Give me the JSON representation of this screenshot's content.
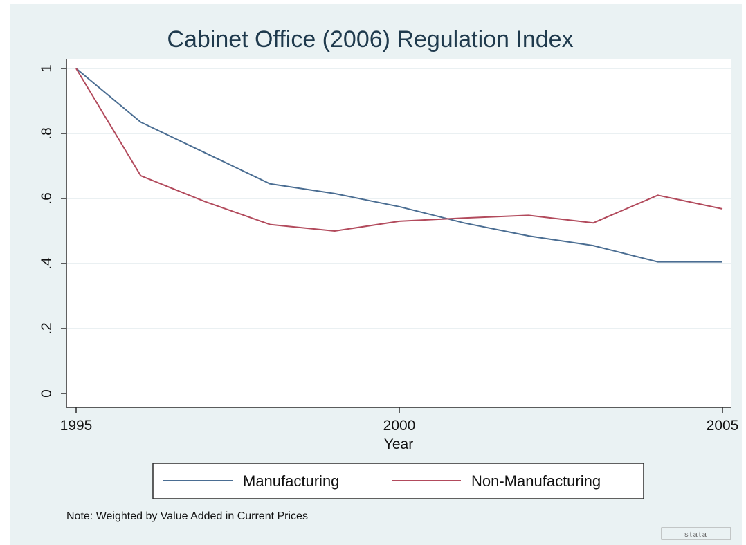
{
  "chart_data": {
    "type": "line",
    "title": "Cabinet Office (2006) Regulation Index",
    "xlabel": "Year",
    "ylabel": "",
    "xlim": [
      1995,
      2005
    ],
    "ylim": [
      0,
      1
    ],
    "x_ticks": [
      1995,
      2000,
      2005
    ],
    "x_tick_labels": [
      "1995",
      "2000",
      "2005"
    ],
    "y_ticks": [
      0,
      0.2,
      0.4,
      0.6,
      0.8,
      1
    ],
    "y_tick_labels": [
      "0",
      ".2",
      ".4",
      ".6",
      ".8",
      "1"
    ],
    "grid": true,
    "legend_position": "bottom",
    "series": [
      {
        "name": "Manufacturing",
        "color": "#4a6d92",
        "x": [
          1995,
          1996,
          1997,
          1998,
          1999,
          2000,
          2001,
          2002,
          2003,
          2004,
          2005
        ],
        "values": [
          1.0,
          0.835,
          0.74,
          0.645,
          0.615,
          0.575,
          0.525,
          0.485,
          0.455,
          0.405,
          0.405
        ]
      },
      {
        "name": "Non-Manufacturing",
        "color": "#b24a5c",
        "x": [
          1995,
          1996,
          1997,
          1998,
          1999,
          2000,
          2001,
          2002,
          2003,
          2004,
          2005
        ],
        "values": [
          1.0,
          0.67,
          0.59,
          0.52,
          0.5,
          0.53,
          0.54,
          0.548,
          0.525,
          0.61,
          0.568
        ]
      }
    ],
    "note": "Note: Weighted by Value Added in Current Prices",
    "watermark": "stata"
  }
}
